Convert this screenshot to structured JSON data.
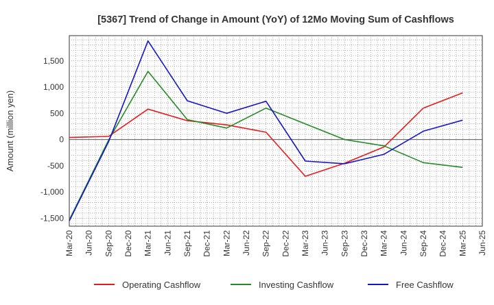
{
  "chart_data": {
    "type": "line",
    "title": "[5367]  Trend of Change in Amount (YoY) of 12Mo Moving Sum of Cashflows",
    "xlabel": "",
    "ylabel": "Amount (million yen)",
    "ylim": [
      -1650,
      1980
    ],
    "y_ticks": [
      1500,
      1000,
      500,
      0,
      -500,
      -1000,
      -1500
    ],
    "y_tick_labels": [
      "1,500",
      "1,000",
      "500",
      "0",
      "-500",
      "-1,000",
      "-1,500"
    ],
    "x_labels": [
      "Mar-20",
      "Jun-20",
      "Sep-20",
      "Dec-20",
      "Mar-21",
      "Jun-21",
      "Sep-21",
      "Dec-21",
      "Mar-22",
      "Jun-22",
      "Sep-22",
      "Dec-22",
      "Mar-23",
      "Jun-23",
      "Sep-23",
      "Dec-23",
      "Mar-24",
      "Jun-24",
      "Sep-24",
      "Dec-24",
      "Mar-25",
      "Jun-25"
    ],
    "grid": true,
    "legend_position": "bottom",
    "series": [
      {
        "name": "Operating Cashflow",
        "color": "#e8191b",
        "points": [
          [
            "Mar-20",
            40
          ],
          [
            "Sep-20",
            60
          ],
          [
            "Mar-21",
            580
          ],
          [
            "Sep-21",
            360
          ],
          [
            "Mar-22",
            280
          ],
          [
            "Sep-22",
            140
          ],
          [
            "Mar-23",
            -700
          ],
          [
            "Sep-23",
            -450
          ],
          [
            "Mar-24",
            -140
          ],
          [
            "Sep-24",
            600
          ],
          [
            "Mar-25",
            890
          ]
        ]
      },
      {
        "name": "Investing Cashflow",
        "color": "#228b22",
        "points": [
          [
            "Mar-20",
            -1530
          ],
          [
            "Sep-20",
            -10
          ],
          [
            "Mar-21",
            1300
          ],
          [
            "Sep-21",
            380
          ],
          [
            "Mar-22",
            220
          ],
          [
            "Sep-22",
            600
          ],
          [
            "Mar-23",
            300
          ],
          [
            "Sep-23",
            0
          ],
          [
            "Mar-24",
            -120
          ],
          [
            "Sep-24",
            -440
          ],
          [
            "Mar-25",
            -530
          ]
        ]
      },
      {
        "name": "Free Cashflow",
        "color": "#1414cc",
        "points": [
          [
            "Mar-20",
            -1550
          ],
          [
            "Sep-20",
            -40
          ],
          [
            "Mar-21",
            1880
          ],
          [
            "Sep-21",
            740
          ],
          [
            "Mar-22",
            500
          ],
          [
            "Sep-22",
            730
          ],
          [
            "Mar-23",
            -410
          ],
          [
            "Sep-23",
            -460
          ],
          [
            "Mar-24",
            -280
          ],
          [
            "Sep-24",
            160
          ],
          [
            "Mar-25",
            370
          ]
        ]
      }
    ]
  }
}
